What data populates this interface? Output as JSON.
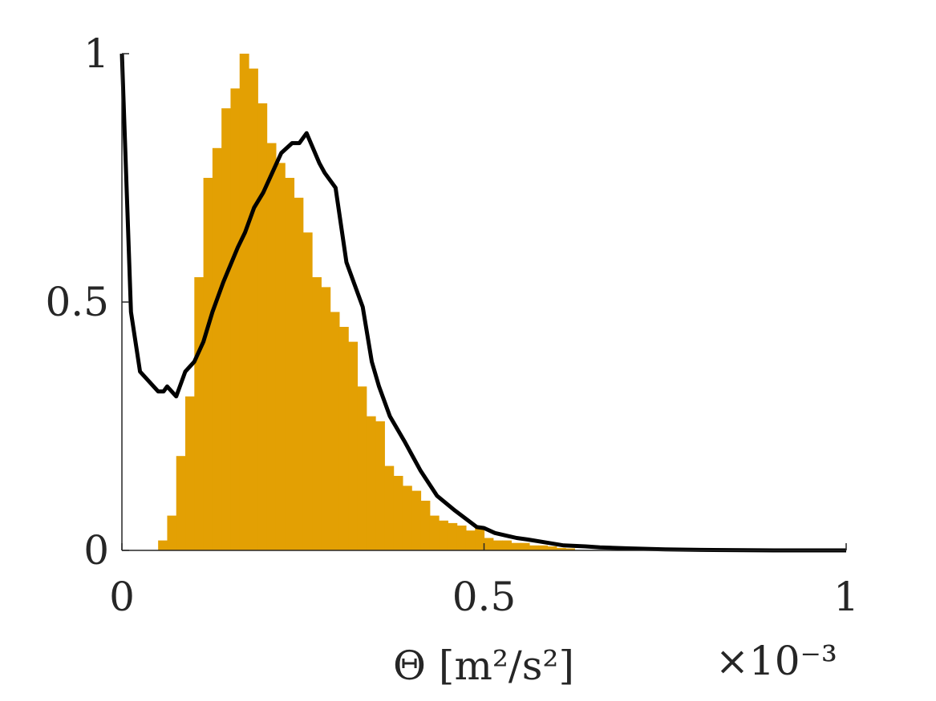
{
  "chart_data": {
    "type": "bar",
    "xlabel": "Θ [m²/s²]",
    "x_exponent": "×10⁻³",
    "xlim": [
      0,
      1
    ],
    "ylim": [
      0,
      1
    ],
    "x_ticks": [
      {
        "value": 0,
        "label": "0"
      },
      {
        "value": 0.5,
        "label": "0.5"
      },
      {
        "value": 1,
        "label": "1"
      }
    ],
    "y_ticks": [
      {
        "value": 0,
        "label": "0"
      },
      {
        "value": 0.5,
        "label": "0.5"
      },
      {
        "value": 1,
        "label": "1"
      }
    ],
    "grid": false,
    "histogram": {
      "color": "#E3A003",
      "bin_width": 0.0125,
      "bin_left_edges": [
        0.05,
        0.0625,
        0.075,
        0.0875,
        0.1,
        0.1125,
        0.125,
        0.1375,
        0.15,
        0.1625,
        0.175,
        0.1875,
        0.2,
        0.2125,
        0.225,
        0.2375,
        0.25,
        0.2625,
        0.275,
        0.2875,
        0.3,
        0.3125,
        0.325,
        0.3375,
        0.35,
        0.3625,
        0.375,
        0.3875,
        0.4,
        0.4125,
        0.425,
        0.4375,
        0.45,
        0.4625,
        0.475,
        0.4875,
        0.5,
        0.5125,
        0.525,
        0.5375,
        0.55,
        0.5625,
        0.575,
        0.5875,
        0.6,
        0.6125
      ],
      "values": [
        0.02,
        0.07,
        0.19,
        0.31,
        0.55,
        0.75,
        0.81,
        0.89,
        0.93,
        1.0,
        0.97,
        0.9,
        0.82,
        0.78,
        0.75,
        0.71,
        0.64,
        0.55,
        0.53,
        0.48,
        0.45,
        0.42,
        0.33,
        0.27,
        0.26,
        0.17,
        0.15,
        0.13,
        0.12,
        0.1,
        0.07,
        0.06,
        0.055,
        0.05,
        0.04,
        0.045,
        0.025,
        0.02,
        0.02,
        0.015,
        0.015,
        0.01,
        0.01,
        0.008,
        0.005,
        0.004
      ]
    },
    "series": [
      {
        "color": "#000000",
        "x": [
          0,
          0.0125,
          0.025,
          0.05,
          0.0575,
          0.0625,
          0.075,
          0.0875,
          0.1,
          0.1125,
          0.125,
          0.14,
          0.16,
          0.17,
          0.1825,
          0.195,
          0.2075,
          0.22,
          0.235,
          0.245,
          0.255,
          0.2725,
          0.28,
          0.295,
          0.31,
          0.3325,
          0.345,
          0.355,
          0.37,
          0.39,
          0.4125,
          0.435,
          0.46,
          0.49,
          0.5,
          0.515,
          0.545,
          0.56,
          0.585,
          0.61,
          0.64,
          0.66,
          0.7,
          0.75,
          0.8,
          0.9,
          1.0
        ],
        "y": [
          1.0,
          0.48,
          0.36,
          0.32,
          0.32,
          0.33,
          0.31,
          0.36,
          0.38,
          0.42,
          0.48,
          0.54,
          0.61,
          0.64,
          0.69,
          0.72,
          0.76,
          0.8,
          0.82,
          0.82,
          0.84,
          0.78,
          0.76,
          0.73,
          0.58,
          0.49,
          0.38,
          0.33,
          0.27,
          0.22,
          0.16,
          0.11,
          0.08,
          0.047,
          0.045,
          0.035,
          0.025,
          0.022,
          0.016,
          0.01,
          0.008,
          0.006,
          0.004,
          0.002,
          0.001,
          0.0,
          0.0
        ]
      }
    ]
  }
}
